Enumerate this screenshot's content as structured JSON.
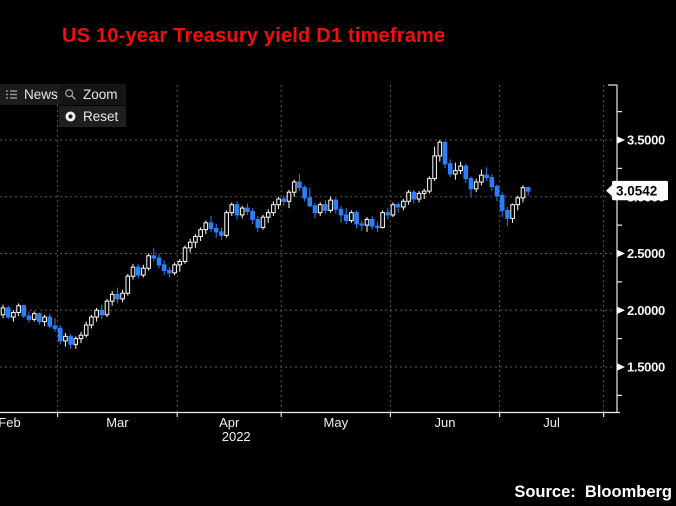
{
  "title": "US 10-year Treasury yield D1 timeframe",
  "toolbar": {
    "news_label": "News",
    "zoom_label": "Zoom",
    "reset_label": "Reset"
  },
  "source": "Source:  Bloomberg",
  "chart_data": {
    "type": "candlestick",
    "title": "US 10-year Treasury yield D1 timeframe",
    "instrument": "US 10-year Treasury yield",
    "timeframe": "D1",
    "legend_position": "none",
    "grid": "dashed",
    "x_axis": {
      "year": "2022",
      "months": [
        "Feb",
        "Mar",
        "Apr",
        "May",
        "Jun",
        "Jul"
      ],
      "boundaries_idx": [
        -8,
        10.5,
        33.5,
        53.5,
        74.5,
        95.5,
        115.5
      ]
    },
    "y_axis": {
      "major_ticks": [
        {
          "value": 3.5,
          "label": "3.5000"
        },
        {
          "value": 3.0,
          "label": "3.0000"
        },
        {
          "value": 2.5,
          "label": "2.5000"
        },
        {
          "value": 2.0,
          "label": "2.0000"
        },
        {
          "value": 1.5,
          "label": "1.5000"
        }
      ],
      "minor_ticks": [
        3.75,
        3.25,
        2.75,
        2.25,
        1.75,
        1.25
      ],
      "range": [
        1.1,
        4.0
      ]
    },
    "last_price": {
      "value": 3.0542,
      "label": "3.0542"
    },
    "colors": {
      "up": "#ffffff",
      "down": "#2a7fff",
      "grid": "#585858",
      "axis": "#e9e9e9",
      "title": "#f30d0d",
      "background": "#000000"
    },
    "candles_format": [
      "open",
      "high",
      "low",
      "close"
    ],
    "candles": [
      [
        1.96,
        2.05,
        1.93,
        2.02
      ],
      [
        2.02,
        2.04,
        1.92,
        1.94
      ],
      [
        1.94,
        2.0,
        1.9,
        1.98
      ],
      [
        1.98,
        2.06,
        1.95,
        2.04
      ],
      [
        2.04,
        2.05,
        1.93,
        1.95
      ],
      [
        1.95,
        1.99,
        1.89,
        1.92
      ],
      [
        1.92,
        1.99,
        1.9,
        1.97
      ],
      [
        1.97,
        1.98,
        1.87,
        1.9
      ],
      [
        1.9,
        1.96,
        1.86,
        1.94
      ],
      [
        1.94,
        1.97,
        1.84,
        1.86
      ],
      [
        1.86,
        1.93,
        1.81,
        1.84
      ],
      [
        1.84,
        1.87,
        1.7,
        1.73
      ],
      [
        1.73,
        1.8,
        1.68,
        1.77
      ],
      [
        1.77,
        1.79,
        1.66,
        1.7
      ],
      [
        1.7,
        1.77,
        1.66,
        1.75
      ],
      [
        1.75,
        1.81,
        1.71,
        1.78
      ],
      [
        1.78,
        1.9,
        1.76,
        1.87
      ],
      [
        1.87,
        1.96,
        1.84,
        1.94
      ],
      [
        1.94,
        2.02,
        1.9,
        2.0
      ],
      [
        2.0,
        2.05,
        1.92,
        1.96
      ],
      [
        1.96,
        2.1,
        1.94,
        2.08
      ],
      [
        2.08,
        2.17,
        2.04,
        2.14
      ],
      [
        2.14,
        2.2,
        2.06,
        2.1
      ],
      [
        2.1,
        2.18,
        2.07,
        2.15
      ],
      [
        2.15,
        2.32,
        2.13,
        2.3
      ],
      [
        2.3,
        2.41,
        2.27,
        2.38
      ],
      [
        2.38,
        2.41,
        2.28,
        2.31
      ],
      [
        2.31,
        2.4,
        2.29,
        2.37
      ],
      [
        2.37,
        2.5,
        2.35,
        2.48
      ],
      [
        2.48,
        2.55,
        2.43,
        2.46
      ],
      [
        2.46,
        2.5,
        2.37,
        2.4
      ],
      [
        2.4,
        2.44,
        2.31,
        2.35
      ],
      [
        2.35,
        2.38,
        2.29,
        2.33
      ],
      [
        2.33,
        2.42,
        2.31,
        2.4
      ],
      [
        2.4,
        2.45,
        2.34,
        2.43
      ],
      [
        2.43,
        2.57,
        2.41,
        2.55
      ],
      [
        2.55,
        2.63,
        2.51,
        2.6
      ],
      [
        2.6,
        2.67,
        2.55,
        2.65
      ],
      [
        2.65,
        2.73,
        2.61,
        2.71
      ],
      [
        2.71,
        2.79,
        2.67,
        2.77
      ],
      [
        2.77,
        2.83,
        2.69,
        2.72
      ],
      [
        2.72,
        2.76,
        2.64,
        2.69
      ],
      [
        2.69,
        2.73,
        2.62,
        2.66
      ],
      [
        2.66,
        2.88,
        2.64,
        2.86
      ],
      [
        2.86,
        2.95,
        2.83,
        2.93
      ],
      [
        2.93,
        2.96,
        2.8,
        2.84
      ],
      [
        2.84,
        2.92,
        2.81,
        2.9
      ],
      [
        2.9,
        2.94,
        2.84,
        2.87
      ],
      [
        2.87,
        2.9,
        2.76,
        2.8
      ],
      [
        2.8,
        2.83,
        2.69,
        2.73
      ],
      [
        2.73,
        2.84,
        2.71,
        2.82
      ],
      [
        2.82,
        2.89,
        2.77,
        2.86
      ],
      [
        2.86,
        2.96,
        2.83,
        2.93
      ],
      [
        2.93,
        3.0,
        2.89,
        2.98
      ],
      [
        2.98,
        3.01,
        2.92,
        2.96
      ],
      [
        2.96,
        3.06,
        2.9,
        3.04
      ],
      [
        3.04,
        3.15,
        3.0,
        3.13
      ],
      [
        3.13,
        3.2,
        3.05,
        3.08
      ],
      [
        3.08,
        3.1,
        2.96,
        2.99
      ],
      [
        2.99,
        3.08,
        2.91,
        2.92
      ],
      [
        2.92,
        2.94,
        2.81,
        2.86
      ],
      [
        2.86,
        2.95,
        2.83,
        2.93
      ],
      [
        2.93,
        2.97,
        2.85,
        2.88
      ],
      [
        2.88,
        3.0,
        2.86,
        2.97
      ],
      [
        2.97,
        2.99,
        2.85,
        2.89
      ],
      [
        2.89,
        2.92,
        2.77,
        2.84
      ],
      [
        2.84,
        2.9,
        2.76,
        2.79
      ],
      [
        2.79,
        2.88,
        2.77,
        2.86
      ],
      [
        2.86,
        2.88,
        2.72,
        2.76
      ],
      [
        2.76,
        2.79,
        2.7,
        2.75
      ],
      [
        2.75,
        2.82,
        2.69,
        2.8
      ],
      [
        2.8,
        2.83,
        2.71,
        2.74
      ],
      [
        2.74,
        2.78,
        2.69,
        2.73
      ],
      [
        2.73,
        2.88,
        2.72,
        2.86
      ],
      [
        2.86,
        2.9,
        2.8,
        2.84
      ],
      [
        2.84,
        2.95,
        2.82,
        2.93
      ],
      [
        2.93,
        2.95,
        2.86,
        2.91
      ],
      [
        2.91,
        2.98,
        2.88,
        2.96
      ],
      [
        2.96,
        3.06,
        2.93,
        3.04
      ],
      [
        3.04,
        3.06,
        2.94,
        2.98
      ],
      [
        2.98,
        3.05,
        2.95,
        3.03
      ],
      [
        3.03,
        3.07,
        2.98,
        3.05
      ],
      [
        3.05,
        3.18,
        3.03,
        3.16
      ],
      [
        3.16,
        3.44,
        3.14,
        3.36
      ],
      [
        3.36,
        3.5,
        3.31,
        3.48
      ],
      [
        3.48,
        3.49,
        3.25,
        3.29
      ],
      [
        3.29,
        3.33,
        3.17,
        3.2
      ],
      [
        3.2,
        3.3,
        3.15,
        3.23
      ],
      [
        3.23,
        3.31,
        3.2,
        3.27
      ],
      [
        3.27,
        3.29,
        3.12,
        3.16
      ],
      [
        3.16,
        3.18,
        3.0,
        3.07
      ],
      [
        3.07,
        3.16,
        3.04,
        3.13
      ],
      [
        3.13,
        3.24,
        3.1,
        3.19
      ],
      [
        3.19,
        3.26,
        3.14,
        3.17
      ],
      [
        3.17,
        3.2,
        3.05,
        3.09
      ],
      [
        3.09,
        3.11,
        2.96,
        3.01
      ],
      [
        3.01,
        3.04,
        2.82,
        2.88
      ],
      [
        2.88,
        2.91,
        2.74,
        2.81
      ],
      [
        2.81,
        2.94,
        2.77,
        2.93
      ],
      [
        2.93,
        3.01,
        2.88,
        2.99
      ],
      [
        2.99,
        3.1,
        2.95,
        3.08
      ],
      [
        3.08,
        3.09,
        3.01,
        3.05
      ]
    ]
  }
}
